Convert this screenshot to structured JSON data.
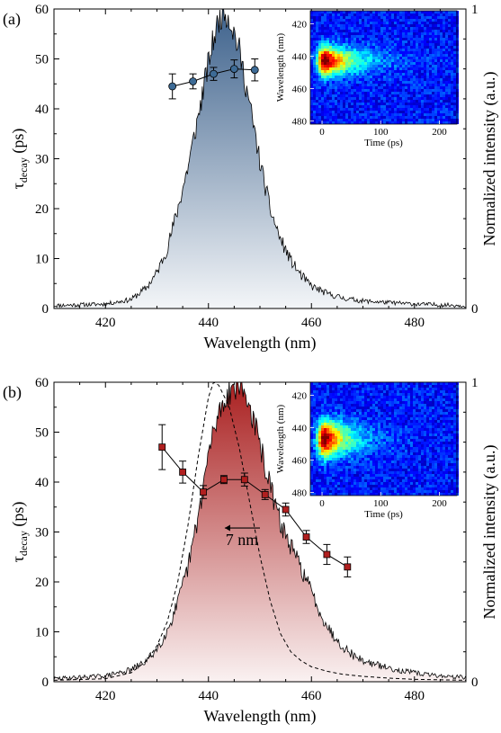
{
  "chart_data": [
    {
      "panel": "(a)",
      "type": "line",
      "xlabel": "Wavelength (nm)",
      "ylabel_left": "τdecay (ps)",
      "ylabel_left_main": "τ",
      "ylabel_left_sub": "decay",
      "ylabel_left_unit": " (ps)",
      "ylabel_right": "Normalized intensity (a.u.)",
      "xlim": [
        410,
        490
      ],
      "ylim_left": [
        0,
        60
      ],
      "ylim_right": [
        0,
        1
      ],
      "xticks": [
        420,
        440,
        460,
        480
      ],
      "yticks_left": [
        0,
        10,
        20,
        30,
        40,
        50,
        60
      ],
      "yticks_right": [
        0,
        1
      ],
      "grid": false,
      "fill_color": "#3a5f8a",
      "marker_color": "#3d6b96",
      "spectrum": {
        "center": 443,
        "sigma": 5.3,
        "x": [
          410,
          420,
          425,
          428,
          430,
          432,
          434,
          436,
          438,
          440,
          441,
          442,
          443,
          444,
          445,
          446,
          448,
          450,
          452,
          454,
          456,
          458,
          460,
          463,
          466,
          470,
          475,
          480,
          485,
          490
        ],
        "y": [
          0.01,
          0.015,
          0.03,
          0.07,
          0.12,
          0.2,
          0.33,
          0.47,
          0.64,
          0.82,
          0.9,
          0.96,
          1.0,
          0.97,
          0.92,
          0.86,
          0.68,
          0.49,
          0.33,
          0.23,
          0.16,
          0.11,
          0.075,
          0.05,
          0.035,
          0.025,
          0.02,
          0.015,
          0.012,
          0.01
        ]
      },
      "series": [
        {
          "x": [
            433,
            437,
            441,
            445,
            449
          ],
          "y": [
            44.5,
            45.5,
            47.0,
            48.0,
            47.8
          ],
          "err": [
            2.5,
            1.5,
            1.3,
            1.8,
            2.2
          ]
        }
      ],
      "inset": {
        "xlabel": "Time (ps)",
        "ylabel": "Wavelength (nm)",
        "xticks": [
          0,
          100,
          200
        ],
        "yticks": [
          420,
          440,
          460,
          480
        ],
        "xlim": [
          -20,
          230
        ],
        "ylim": [
          412,
          482
        ],
        "peak_wavelength": 443,
        "peak_time": 5,
        "decay_ps": 47,
        "spectral_sigma": 6
      }
    },
    {
      "panel": "(b)",
      "type": "line",
      "xlabel": "Wavelength (nm)",
      "ylabel_left": "τdecay (ps)",
      "ylabel_left_main": "τ",
      "ylabel_left_sub": "decay",
      "ylabel_left_unit": " (ps)",
      "ylabel_right": "Normalized intensity (a.u.)",
      "xlim": [
        410,
        490
      ],
      "ylim_left": [
        0,
        60
      ],
      "ylim_right": [
        0,
        1
      ],
      "xticks": [
        420,
        440,
        460,
        480
      ],
      "yticks_left": [
        0,
        10,
        20,
        30,
        40,
        50,
        60
      ],
      "yticks_right": [
        0,
        1
      ],
      "grid": false,
      "fill_color": "#a81c1c",
      "marker_color": "#b01f1f",
      "annotation": "7 nm",
      "spectrum": {
        "center": 446,
        "x": [
          410,
          420,
          425,
          428,
          430,
          432,
          434,
          436,
          438,
          440,
          442,
          444,
          446,
          448,
          450,
          452,
          454,
          456,
          458,
          460,
          462,
          464,
          466,
          468,
          470,
          474,
          478,
          482,
          486,
          490
        ],
        "y": [
          0.01,
          0.02,
          0.04,
          0.07,
          0.11,
          0.17,
          0.26,
          0.38,
          0.55,
          0.76,
          0.9,
          0.97,
          1.0,
          0.92,
          0.79,
          0.65,
          0.53,
          0.45,
          0.38,
          0.3,
          0.22,
          0.16,
          0.12,
          0.09,
          0.07,
          0.05,
          0.035,
          0.025,
          0.018,
          0.015
        ]
      },
      "reference_spectrum": {
        "center": 441,
        "x": [
          410,
          420,
          425,
          428,
          430,
          432,
          434,
          436,
          438,
          440,
          441,
          442,
          444,
          446,
          448,
          450,
          452,
          454,
          456,
          458,
          460,
          463,
          466,
          470,
          475,
          480,
          490
        ],
        "y": [
          0.005,
          0.01,
          0.03,
          0.07,
          0.12,
          0.2,
          0.33,
          0.52,
          0.75,
          0.95,
          1.0,
          0.99,
          0.92,
          0.78,
          0.6,
          0.42,
          0.27,
          0.16,
          0.1,
          0.07,
          0.05,
          0.035,
          0.025,
          0.018,
          0.012,
          0.008,
          0.005
        ]
      },
      "series": [
        {
          "x": [
            431,
            435,
            439,
            443,
            447,
            451,
            455,
            459,
            463,
            467
          ],
          "y": [
            47.0,
            42.0,
            38.0,
            40.5,
            40.5,
            37.5,
            34.5,
            29.0,
            25.5,
            23.0
          ],
          "err": [
            4.5,
            2.2,
            1.3,
            0.8,
            1.3,
            1.0,
            1.3,
            1.3,
            2.0,
            2.0
          ]
        }
      ],
      "inset": {
        "xlabel": "Time (ps)",
        "ylabel": "Wavelength (nm)",
        "xticks": [
          0,
          100,
          200
        ],
        "yticks": [
          420,
          440,
          460,
          480
        ],
        "xlim": [
          -20,
          230
        ],
        "ylim": [
          412,
          482
        ],
        "peak_wavelength": 447,
        "peak_time": 5,
        "decay_ps": 38,
        "spectral_sigma": 7.5
      }
    }
  ]
}
